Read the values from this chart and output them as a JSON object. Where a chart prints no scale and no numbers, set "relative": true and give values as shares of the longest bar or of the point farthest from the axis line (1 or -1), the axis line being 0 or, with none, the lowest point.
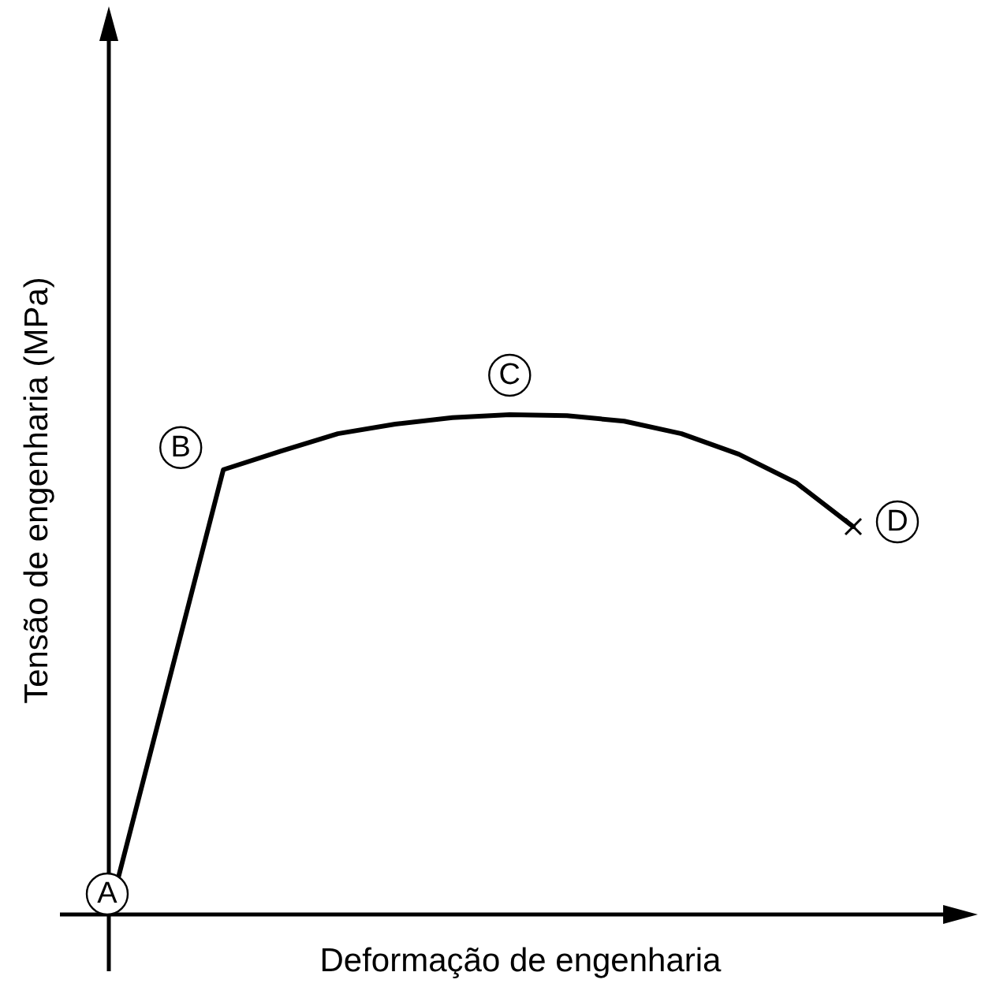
{
  "chart_data": {
    "type": "line",
    "relative": true,
    "xlabel": "Deformação de engenharia",
    "ylabel": "Tensão de engenharia (MPa)",
    "categories": [
      null,
      null,
      null,
      null,
      null,
      null,
      null,
      null,
      null,
      null,
      null,
      null,
      null,
      null
    ],
    "series": [
      {
        "color": "#000000",
        "values": [
          0,
          0.445,
          0.89,
          0.927,
          0.962,
          0.981,
          0.994,
          1,
          0.998,
          0.987,
          0.962,
          0.921,
          0.864,
          0.776
        ]
      }
    ],
    "annotations": [
      "A",
      "B",
      "C",
      "D"
    ]
  }
}
